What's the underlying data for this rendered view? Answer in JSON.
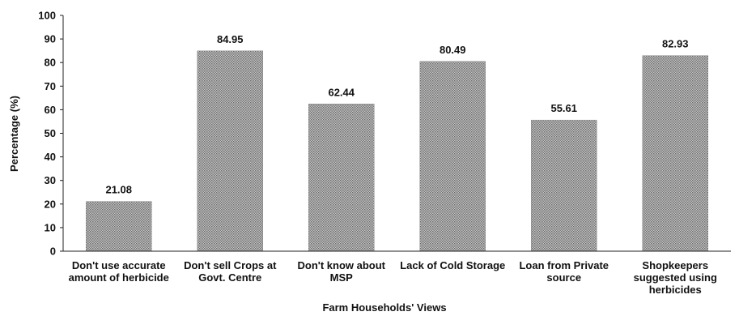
{
  "chart_data": {
    "type": "bar",
    "title": "",
    "xlabel": "Farm Households' Views",
    "ylabel": "Percentage (%)",
    "ylim": [
      0,
      100
    ],
    "yticks": [
      0,
      10,
      20,
      30,
      40,
      50,
      60,
      70,
      80,
      90,
      100
    ],
    "grid": false,
    "legend": "none",
    "categories": [
      [
        "Don't use accurate",
        "amount of herbicide"
      ],
      [
        "Don't sell Crops at",
        "Govt. Centre"
      ],
      [
        "Don't know about",
        "MSP"
      ],
      [
        "Lack of Cold Storage"
      ],
      [
        "Loan from Private",
        "source"
      ],
      [
        "Shopkeepers",
        "suggested using",
        "herbicides"
      ]
    ],
    "values": [
      21.08,
      84.95,
      62.44,
      80.49,
      55.61,
      82.93
    ],
    "value_labels": [
      "21.08",
      "84.95",
      "62.44",
      "80.49",
      "55.61",
      "82.93"
    ],
    "bar_color": "#9a9a9a",
    "bar_pattern": "dotted-gray"
  }
}
